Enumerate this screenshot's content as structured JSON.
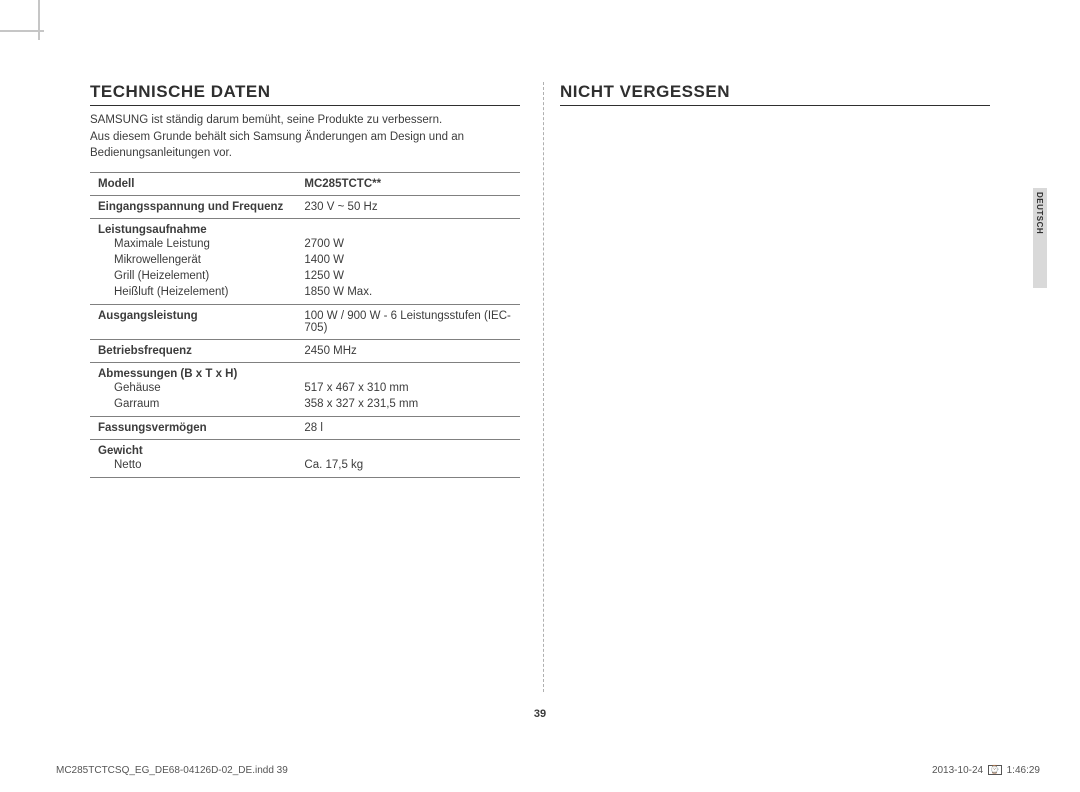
{
  "headings": {
    "left": "TECHNISCHE DATEN",
    "right": "NICHT VERGESSEN"
  },
  "intro": {
    "l1": "SAMSUNG ist ständig darum bemüht, seine Produkte zu verbessern.",
    "l2": "Aus diesem Grunde behält sich Samsung Änderungen am Design und an Bedienungsanleitungen vor."
  },
  "spec": {
    "model_label": "Modell",
    "model_value": "MC285TCTC**",
    "voltage_label": "Eingangsspannung und Frequenz",
    "voltage_value": "230 V ~ 50 Hz",
    "power_label": "Leistungsaufnahme",
    "power_max_label": "Maximale Leistung",
    "power_max_value": "2700 W",
    "power_mw_label": "Mikrowellengerät",
    "power_mw_value": "1400 W",
    "power_grill_label": "Grill (Heizelement)",
    "power_grill_value": "1250 W",
    "power_conv_label": "Heißluft (Heizelement)",
    "power_conv_value": "1850 W Max.",
    "output_label": "Ausgangsleistung",
    "output_value": "100 W / 900 W - 6 Leistungsstufen (IEC-705)",
    "freq_label": "Betriebsfrequenz",
    "freq_value": "2450 MHz",
    "dim_label": "Abmessungen (B x T x H)",
    "dim_case_label": "Gehäuse",
    "dim_case_value": "517 x 467 x 310 mm",
    "dim_cavity_label": "Garraum",
    "dim_cavity_value": "358 x 327 x 231,5 mm",
    "cap_label": "Fassungsvermögen",
    "cap_value": "28 l",
    "weight_label": "Gewicht",
    "weight_net_label": "Netto",
    "weight_net_value": "Ca. 17,5 kg"
  },
  "side_tab": "DEUTSCH",
  "page_number": "39",
  "footer": {
    "file": "MC285TCTCSQ_EG_DE68-04126D-02_DE.indd   39",
    "date": "2013-10-24",
    "time": "1:46:29"
  },
  "colors": {
    "text": "#3a3a3a",
    "rule": "#808080",
    "crop": "#c6c6c6",
    "tab_bg": "#d9d9d9"
  }
}
